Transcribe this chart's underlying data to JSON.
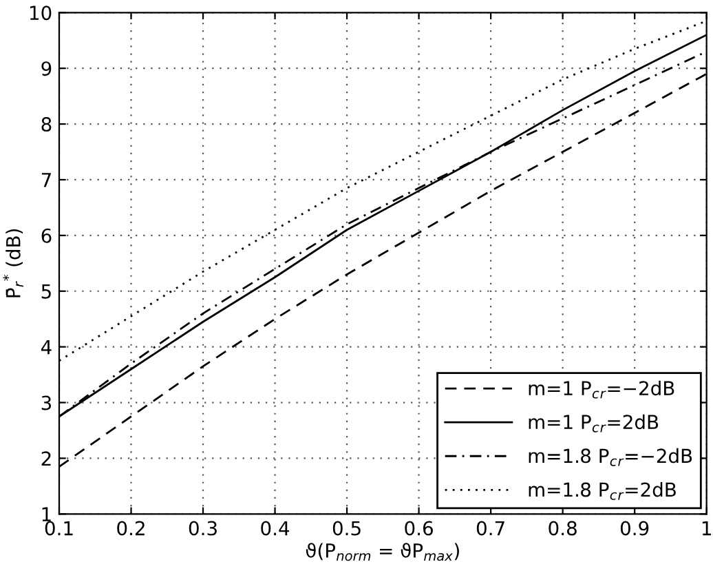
{
  "chart_data": {
    "type": "line",
    "xlabel": "ϑ(P$_{norm}$ = ϑP$_{max}$)",
    "ylabel": "P̄$_{r}$$^{*}$ (dB)",
    "x": [
      0.1,
      0.2,
      0.3,
      0.4,
      0.5,
      0.6,
      0.7,
      0.8,
      0.9,
      1.0
    ],
    "series": [
      {
        "name": "m=1 P$_{c}$$_{r}$=−2dB",
        "color": "#000000",
        "line_style": "dashed",
        "values": [
          1.85,
          2.75,
          3.65,
          4.5,
          5.3,
          6.05,
          6.8,
          7.5,
          8.2,
          8.9
        ]
      },
      {
        "name": "m=1 P$_{c}$$_{r}$=2dB",
        "color": "#000000",
        "line_style": "solid",
        "values": [
          2.75,
          3.6,
          4.45,
          5.25,
          6.1,
          6.8,
          7.5,
          8.25,
          8.95,
          9.6
        ]
      },
      {
        "name": "m=1.8 P$_{c}$$_{r}$=−2dB",
        "color": "#000000",
        "line_style": "dashdot",
        "values": [
          2.75,
          3.7,
          4.6,
          5.4,
          6.2,
          6.85,
          7.5,
          8.1,
          8.7,
          9.3
        ]
      },
      {
        "name": "m=1.8 P$_{c}$$_{r}$=2dB",
        "color": "#000000",
        "line_style": "dotted",
        "values": [
          3.75,
          4.55,
          5.35,
          6.1,
          6.85,
          7.5,
          8.15,
          8.8,
          9.35,
          9.85
        ]
      }
    ],
    "xlim": [
      0.1,
      1
    ],
    "ylim": [
      1,
      10
    ],
    "xticks": [
      0.1,
      0.2,
      0.3,
      0.4,
      0.5,
      0.6,
      0.7,
      0.8,
      0.9,
      {
        "value": 1,
        "label": "1"
      }
    ],
    "yticks": [
      1,
      2,
      3,
      4,
      5,
      6,
      7,
      8,
      9,
      10
    ],
    "grid": true,
    "legend": "bottom right",
    "marker": "none"
  }
}
